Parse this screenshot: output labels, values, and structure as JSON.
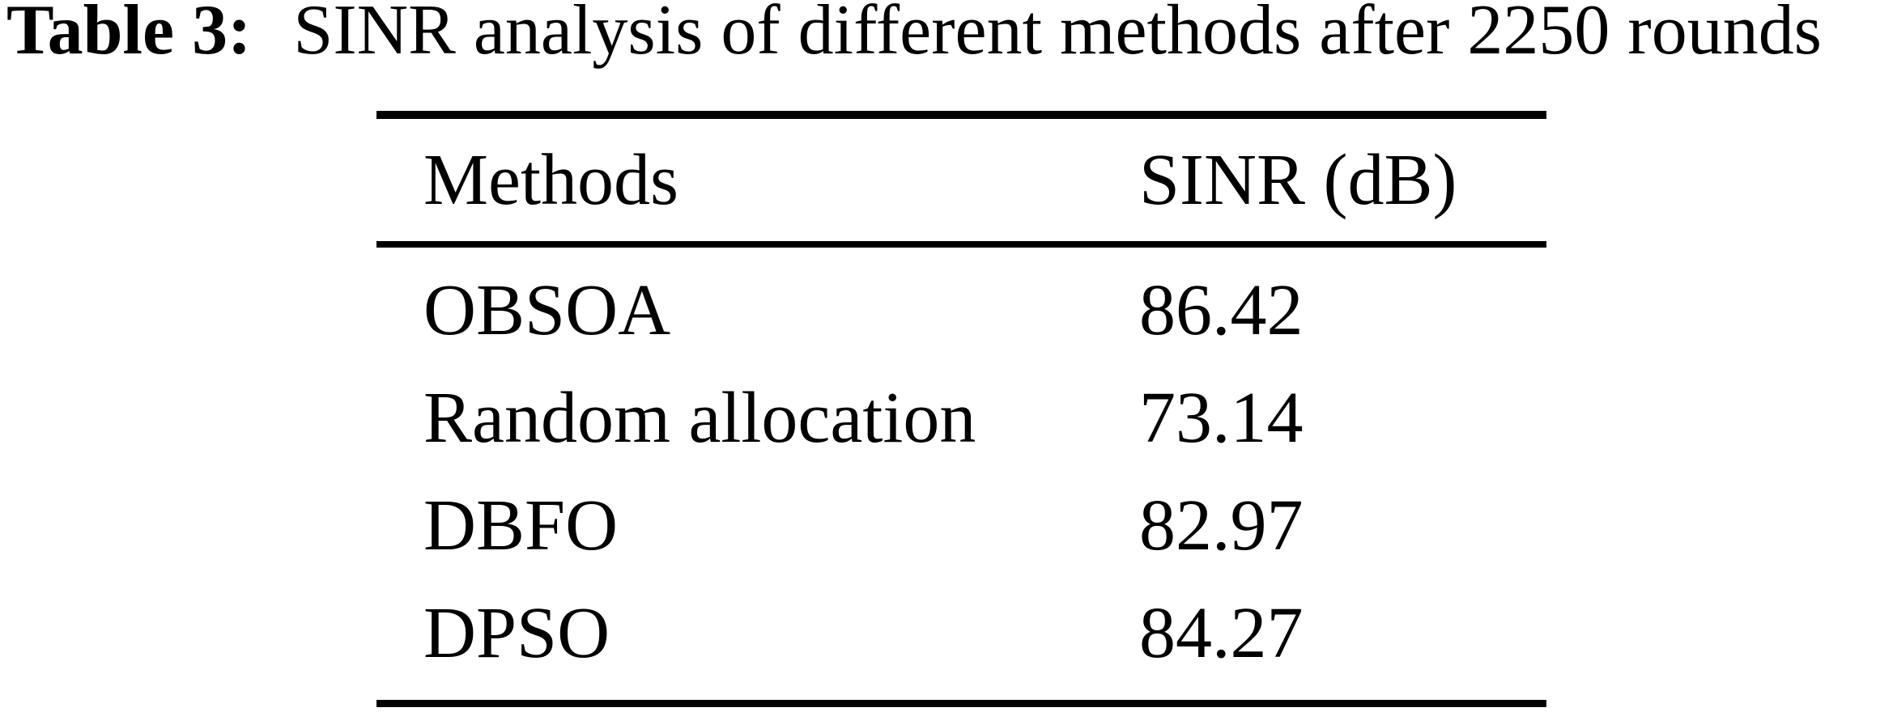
{
  "caption": {
    "label": "Table 3:",
    "text": "SINR analysis of different methods after 2250 rounds"
  },
  "table": {
    "headers": {
      "methods": "Methods",
      "sinr": "SINR (dB)"
    },
    "rows": [
      {
        "method": "OBSOA",
        "sinr": "86.42"
      },
      {
        "method": "Random allocation",
        "sinr": "73.14"
      },
      {
        "method": "DBFO",
        "sinr": "82.97"
      },
      {
        "method": "DPSO",
        "sinr": "84.27"
      }
    ]
  },
  "chart_data": {
    "type": "table",
    "title": "Table 3: SINR analysis of different methods after 2250 rounds",
    "columns": [
      "Methods",
      "SINR (dB)"
    ],
    "rows": [
      [
        "OBSOA",
        86.42
      ],
      [
        "Random allocation",
        73.14
      ],
      [
        "DBFO",
        82.97
      ],
      [
        "DPSO",
        84.27
      ]
    ]
  },
  "colors": {
    "background": "#ffffff",
    "text": "#000000",
    "rule": "#000000"
  }
}
